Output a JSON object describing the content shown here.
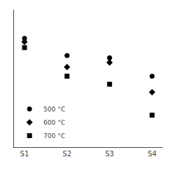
{
  "chart_data": {
    "type": "scatter",
    "categories": [
      "S1",
      "S2",
      "S3",
      "S4"
    ],
    "series": [
      {
        "name": "500 °C",
        "color": "#000000",
        "marker": "circle",
        "values": [
          9.5,
          8.0,
          7.8,
          6.2
        ]
      },
      {
        "name": "600 °C",
        "color": "#000000",
        "marker": "diamond",
        "values": [
          9.2,
          7.0,
          7.4,
          4.8
        ]
      },
      {
        "name": "700 °C",
        "color": "#000000",
        "marker": "square",
        "values": [
          8.7,
          6.2,
          5.5,
          2.8
        ]
      }
    ],
    "ylim": [
      0,
      12
    ],
    "grid": false,
    "legend": "lower left",
    "tick_labels": "x"
  }
}
